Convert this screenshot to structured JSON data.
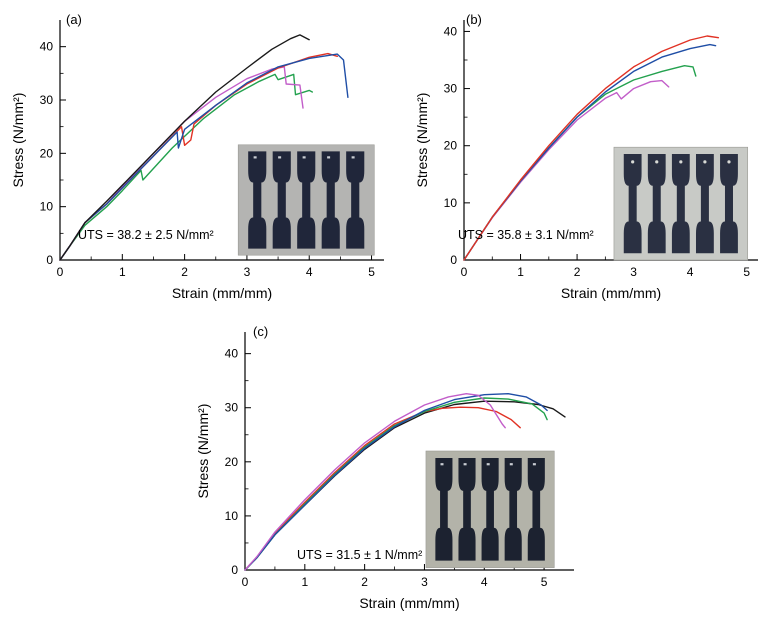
{
  "figure_background": "#ffffff",
  "chart_data": [
    {
      "id": "a",
      "type": "line",
      "label": "(a)",
      "xlabel": "Strain (mm/mm)",
      "ylabel": "Stress (N/mm²)",
      "xlim": [
        0,
        5.2
      ],
      "ylim": [
        0,
        45
      ],
      "xticks": [
        0,
        1,
        2,
        3,
        4,
        5
      ],
      "yticks": [
        0,
        10,
        20,
        30,
        40
      ],
      "uts_label": "UTS = 38.2 ± 2.5 N/mm²",
      "series": [
        {
          "name": "curve-green",
          "color": "#23a14e",
          "points": [
            [
              0,
              0
            ],
            [
              0.15,
              2.5
            ],
            [
              0.4,
              6.5
            ],
            [
              0.75,
              10
            ],
            [
              1.0,
              13
            ],
            [
              1.3,
              16.8
            ],
            [
              1.33,
              15
            ],
            [
              1.8,
              21
            ],
            [
              2.3,
              26.5
            ],
            [
              2.8,
              31
            ],
            [
              3.2,
              33.5
            ],
            [
              3.45,
              34.8
            ],
            [
              3.5,
              33.8
            ],
            [
              3.75,
              34.8
            ],
            [
              3.78,
              31
            ],
            [
              4.0,
              31.8
            ],
            [
              4.05,
              31.5
            ]
          ]
        },
        {
          "name": "curve-magenta",
          "color": "#c25ec9",
          "points": [
            [
              0,
              0
            ],
            [
              0.15,
              2.5
            ],
            [
              0.4,
              7
            ],
            [
              0.75,
              10.5
            ],
            [
              1.0,
              13.8
            ],
            [
              1.5,
              20
            ],
            [
              2.0,
              26
            ],
            [
              2.5,
              30.5
            ],
            [
              3.0,
              34
            ],
            [
              3.4,
              35.8
            ],
            [
              3.6,
              36.2
            ],
            [
              3.63,
              33
            ],
            [
              3.85,
              32.8
            ],
            [
              3.9,
              28.5
            ]
          ]
        },
        {
          "name": "curve-red",
          "color": "#e13224",
          "points": [
            [
              0,
              0
            ],
            [
              0.15,
              2.5
            ],
            [
              0.4,
              7
            ],
            [
              0.75,
              10.5
            ],
            [
              1.0,
              13.5
            ],
            [
              1.5,
              19.5
            ],
            [
              1.95,
              25
            ],
            [
              2.0,
              21.5
            ],
            [
              2.1,
              22.5
            ],
            [
              2.15,
              25.5
            ],
            [
              2.5,
              29
            ],
            [
              3.0,
              33
            ],
            [
              3.5,
              36
            ],
            [
              4.0,
              38
            ],
            [
              4.3,
              38.7
            ],
            [
              4.45,
              38.2
            ]
          ]
        },
        {
          "name": "curve-blue",
          "color": "#1f4ea6",
          "points": [
            [
              0,
              0
            ],
            [
              0.15,
              2.5
            ],
            [
              0.4,
              7
            ],
            [
              0.75,
              10.5
            ],
            [
              1.0,
              13.5
            ],
            [
              1.5,
              19.5
            ],
            [
              1.88,
              24
            ],
            [
              1.9,
              21
            ],
            [
              2.0,
              24.5
            ],
            [
              2.5,
              29
            ],
            [
              3.0,
              33.2
            ],
            [
              3.5,
              36.2
            ],
            [
              4.0,
              37.8
            ],
            [
              4.45,
              38.6
            ],
            [
              4.55,
              37.5
            ],
            [
              4.62,
              30.5
            ]
          ]
        },
        {
          "name": "curve-black",
          "color": "#1a1a1a",
          "points": [
            [
              0,
              0
            ],
            [
              0.15,
              2.5
            ],
            [
              0.4,
              7
            ],
            [
              0.75,
              11
            ],
            [
              1.0,
              14
            ],
            [
              1.5,
              20
            ],
            [
              2.0,
              26
            ],
            [
              2.5,
              31.5
            ],
            [
              3.0,
              36
            ],
            [
              3.4,
              39.5
            ],
            [
              3.7,
              41.5
            ],
            [
              3.85,
              42.2
            ],
            [
              4.0,
              41.3
            ]
          ]
        }
      ],
      "inset": {
        "bg": "#b4b4b2",
        "specimen_color": "#20263a",
        "count": 5,
        "hole": false,
        "x": 0.55,
        "y": 0.52,
        "w": 0.42,
        "h": 0.46
      }
    },
    {
      "id": "b",
      "type": "line",
      "label": "(b)",
      "xlabel": "Strain (mm/mm)",
      "ylabel": "Stress (N/mm²)",
      "xlim": [
        0,
        5.2
      ],
      "ylim": [
        0,
        42
      ],
      "xticks": [
        0,
        1,
        2,
        3,
        4,
        5
      ],
      "yticks": [
        0,
        10,
        20,
        30,
        40
      ],
      "uts_label": "UTS = 35.8 ± 3.1 N/mm²",
      "series": [
        {
          "name": "curve-magenta",
          "color": "#c25ec9",
          "points": [
            [
              0,
              0
            ],
            [
              0.2,
              3
            ],
            [
              0.5,
              7.4
            ],
            [
              1.0,
              13.6
            ],
            [
              1.5,
              19.3
            ],
            [
              2.0,
              24.5
            ],
            [
              2.5,
              28.3
            ],
            [
              2.7,
              29.3
            ],
            [
              2.78,
              28.2
            ],
            [
              3.0,
              30
            ],
            [
              3.3,
              31.2
            ],
            [
              3.5,
              31.4
            ],
            [
              3.62,
              30.3
            ]
          ]
        },
        {
          "name": "curve-green",
          "color": "#23a14e",
          "points": [
            [
              0,
              0
            ],
            [
              0.2,
              3
            ],
            [
              0.5,
              7.5
            ],
            [
              1.0,
              13.8
            ],
            [
              1.5,
              19.6
            ],
            [
              2.0,
              25
            ],
            [
              2.5,
              29
            ],
            [
              3.0,
              31.5
            ],
            [
              3.5,
              33
            ],
            [
              3.9,
              34
            ],
            [
              4.05,
              33.8
            ],
            [
              4.1,
              32.2
            ]
          ]
        },
        {
          "name": "curve-blue",
          "color": "#1f4ea6",
          "points": [
            [
              0,
              0
            ],
            [
              0.2,
              3
            ],
            [
              0.5,
              7.5
            ],
            [
              1.0,
              13.8
            ],
            [
              1.5,
              19.6
            ],
            [
              2.0,
              25
            ],
            [
              2.5,
              29.4
            ],
            [
              3.0,
              33
            ],
            [
              3.5,
              35.5
            ],
            [
              4.0,
              37
            ],
            [
              4.35,
              37.7
            ],
            [
              4.45,
              37.5
            ]
          ]
        },
        {
          "name": "curve-red",
          "color": "#e13224",
          "points": [
            [
              0,
              0
            ],
            [
              0.2,
              3
            ],
            [
              0.5,
              7.5
            ],
            [
              1.0,
              14
            ],
            [
              1.5,
              20
            ],
            [
              2.0,
              25.5
            ],
            [
              2.5,
              30
            ],
            [
              3.0,
              33.8
            ],
            [
              3.5,
              36.5
            ],
            [
              4.0,
              38.5
            ],
            [
              4.3,
              39.2
            ],
            [
              4.5,
              38.9
            ]
          ]
        }
      ],
      "inset": {
        "bg": "#c8cac6",
        "specimen_color": "#2a3042",
        "count": 5,
        "hole": true,
        "x": 0.51,
        "y": 0.53,
        "w": 0.455,
        "h": 0.47
      }
    },
    {
      "id": "c",
      "type": "line",
      "label": "(c)",
      "xlabel": "Strain (mm/mm)",
      "ylabel": "Stress (N/mm²)",
      "xlim": [
        0,
        5.5
      ],
      "ylim": [
        0,
        44
      ],
      "xticks": [
        0,
        1,
        2,
        3,
        4,
        5
      ],
      "yticks": [
        0,
        10,
        20,
        30,
        40
      ],
      "uts_label": "UTS = 31.5 ± 1 N/mm²",
      "series": [
        {
          "name": "curve-black",
          "color": "#1a1a1a",
          "points": [
            [
              0,
              0
            ],
            [
              0.2,
              2.3
            ],
            [
              0.5,
              6.5
            ],
            [
              1.0,
              12
            ],
            [
              1.5,
              17.4
            ],
            [
              2.0,
              22.3
            ],
            [
              2.5,
              26.3
            ],
            [
              3.0,
              29
            ],
            [
              3.5,
              30.6
            ],
            [
              4.0,
              31.2
            ],
            [
              4.5,
              31.1
            ],
            [
              4.9,
              30.6
            ],
            [
              5.15,
              29.8
            ],
            [
              5.35,
              28.3
            ]
          ]
        },
        {
          "name": "curve-red",
          "color": "#e13224",
          "points": [
            [
              0,
              0
            ],
            [
              0.2,
              2.4
            ],
            [
              0.5,
              6.8
            ],
            [
              1.0,
              12.5
            ],
            [
              1.5,
              18
            ],
            [
              2.0,
              23
            ],
            [
              2.5,
              27
            ],
            [
              3.0,
              29.3
            ],
            [
              3.3,
              29.9
            ],
            [
              3.6,
              30.1
            ],
            [
              3.9,
              30
            ],
            [
              4.2,
              29.3
            ],
            [
              4.45,
              27.8
            ],
            [
              4.6,
              26.3
            ]
          ]
        },
        {
          "name": "curve-green",
          "color": "#23a14e",
          "points": [
            [
              0,
              0
            ],
            [
              0.2,
              2.3
            ],
            [
              0.5,
              6.5
            ],
            [
              1.0,
              12.2
            ],
            [
              1.5,
              17.7
            ],
            [
              2.0,
              22.7
            ],
            [
              2.5,
              26.7
            ],
            [
              3.0,
              29.3
            ],
            [
              3.5,
              31
            ],
            [
              4.0,
              31.8
            ],
            [
              4.4,
              31.6
            ],
            [
              4.8,
              30.7
            ],
            [
              5.0,
              29
            ],
            [
              5.05,
              27.8
            ]
          ]
        },
        {
          "name": "curve-blue",
          "color": "#1f4ea6",
          "points": [
            [
              0,
              0
            ],
            [
              0.2,
              2.3
            ],
            [
              0.5,
              6.5
            ],
            [
              1.0,
              12
            ],
            [
              1.5,
              17.5
            ],
            [
              2.0,
              22.5
            ],
            [
              2.5,
              26.5
            ],
            [
              3.0,
              29.5
            ],
            [
              3.5,
              31.5
            ],
            [
              4.0,
              32.4
            ],
            [
              4.4,
              32.6
            ],
            [
              4.7,
              32
            ],
            [
              4.95,
              30.5
            ],
            [
              5.05,
              29.5
            ]
          ]
        },
        {
          "name": "curve-magenta",
          "color": "#c25ec9",
          "points": [
            [
              0,
              0
            ],
            [
              0.2,
              2.5
            ],
            [
              0.5,
              7
            ],
            [
              1.0,
              13
            ],
            [
              1.5,
              18.5
            ],
            [
              2.0,
              23.5
            ],
            [
              2.5,
              27.5
            ],
            [
              3.0,
              30.5
            ],
            [
              3.4,
              32
            ],
            [
              3.7,
              32.6
            ],
            [
              3.9,
              32.3
            ],
            [
              4.1,
              30.5
            ],
            [
              4.3,
              27
            ],
            [
              4.35,
              26.3
            ]
          ]
        }
      ],
      "inset": {
        "bg": "#b3b3a9",
        "specimen_color": "#1c2230",
        "count": 5,
        "hole": false,
        "x": 0.55,
        "y": 0.5,
        "w": 0.39,
        "h": 0.49
      }
    }
  ]
}
